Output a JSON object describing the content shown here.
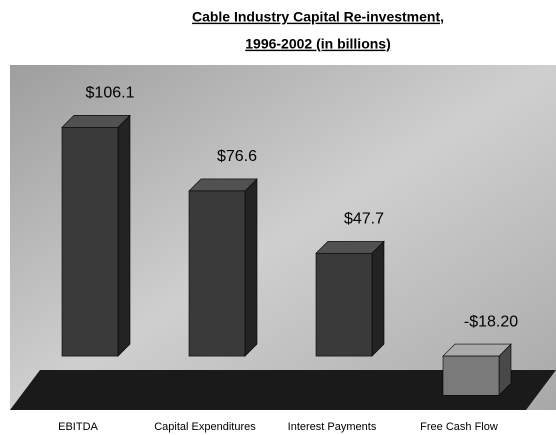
{
  "chart_data": {
    "type": "bar",
    "title": "Cable Industry Capital Re-investment,",
    "subtitle": "1996-2002 (in billions)",
    "categories": [
      "EBITDA",
      "Capital Expenditures",
      "Interest Payments",
      "Free Cash Flow"
    ],
    "values": [
      106.1,
      76.6,
      47.7,
      -18.2
    ],
    "value_labels": [
      "$106.1",
      "$76.6",
      "$47.7",
      "-$18.20"
    ],
    "colors": [
      "#3a3a3a",
      "#3a3a3a",
      "#3a3a3a",
      "#7a7a7a"
    ],
    "ylim": [
      -25,
      135
    ]
  }
}
